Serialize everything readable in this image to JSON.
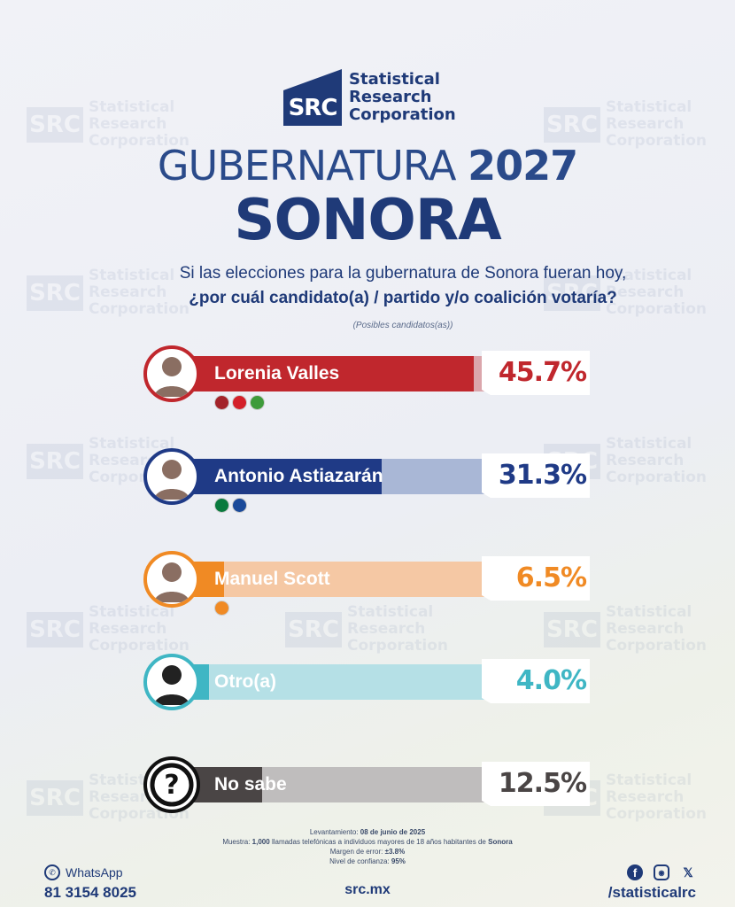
{
  "brand": {
    "abbr": "SRC",
    "name_line1": "Statistical",
    "name_line2": "Research",
    "name_line3": "Corporation",
    "color": "#1f3a78"
  },
  "title": {
    "word": "GUBERNATURA",
    "year": "2027",
    "state": "SONORA"
  },
  "question": {
    "line1": "Si las elecciones para la gubernatura de Sonora fueran hoy,",
    "line2": "¿por cuál candidato(a) / partido y/o coalición votaría?",
    "note": "(Posibles candidatos(as))"
  },
  "chart_data": {
    "type": "bar",
    "orientation": "horizontal",
    "unit": "%",
    "categories": [
      "Lorenia Valles",
      "Antonio Astiazarán",
      "Manuel Scott",
      "Otro(a)",
      "No sabe"
    ],
    "values": [
      45.7,
      31.3,
      6.5,
      4.0,
      12.5
    ],
    "labels": [
      "45.7%",
      "31.3%",
      "6.5%",
      "4.0%",
      "12.5%"
    ],
    "colors": [
      "#c0272d",
      "#1f3a86",
      "#f08a24",
      "#3fb6c4",
      "#4a4545"
    ],
    "light_colors": [
      "#dba6ac",
      "#a9b7d6",
      "#f5c8a4",
      "#b5e0e6",
      "#bfbdbd"
    ],
    "avatar_icons": [
      "person-icon",
      "person-icon",
      "person-icon",
      "person-silhouette-icon",
      "question-mark-icon"
    ],
    "party_logos": [
      [
        "MORENA",
        "PT",
        "PVEM"
      ],
      [
        "PRI",
        "PAN"
      ],
      [
        "MC"
      ],
      [],
      []
    ]
  },
  "footer": {
    "levantamiento_label": "Levantamiento:",
    "levantamiento_value": "08 de junio de 2025",
    "muestra_label": "Muestra:",
    "muestra_value": "1,000",
    "muestra_text": "llamadas telefónicas a individuos mayores de 18 años habitantes de",
    "muestra_place": "Sonora",
    "margen_label": "Margen de error:",
    "margen_value": "±3.8%",
    "nivel_label": "Nivel de confianza:",
    "nivel_value": "95%",
    "whatsapp_label": "WhatsApp",
    "phone": "81 3154 8025",
    "website": "src.mx",
    "handle": "/statisticalrc",
    "social_icons": [
      "facebook-icon",
      "instagram-icon",
      "x-icon"
    ]
  }
}
